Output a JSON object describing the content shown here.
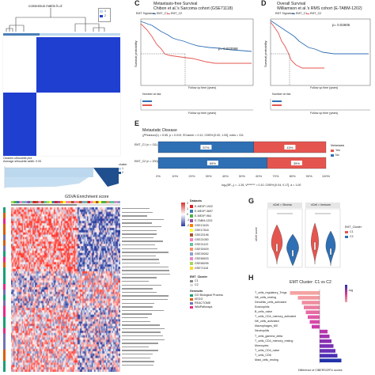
{
  "panels": {
    "C": {
      "letter": "C",
      "title_line1": "Metastasis-free Survival",
      "title_line2": "Chibon et al.'s Sarcoma cohort (GSE71118)",
      "legend_title": "EMT Signature",
      "legend_items": [
        "EMT_C1",
        "EMT_C2"
      ],
      "pvalue": "p= 0.003598",
      "ylabel": "Survival probability",
      "xlabel": "Follow up time (years)",
      "risk_title": "Number at risk",
      "risk_xlabel": "Follow up time (years)"
    },
    "D": {
      "letter": "D",
      "title_line1": "Overall Survival",
      "title_line2": "Williamson et al.'s RMS cohort (E-TABM-1202)",
      "legend_title": "EMT Signature",
      "legend_items": [
        "EMT_C1",
        "EMT_C2"
      ],
      "pvalue": "p= 0.02605",
      "ylabel": "Survival probability",
      "xlabel": "Follow up time (years)",
      "risk_title": "Number at risk",
      "risk_xlabel": "Follow up time (years)"
    },
    "E": {
      "letter": "E",
      "title": "Metastatic Disease",
      "stats": "χ²Pearson(1) = 5.55, p = 0.019, V̂Cramer = 0.12, CI95% [0.00, 1.00], nobs = 311",
      "legend_title": "Metastasis",
      "legend_items": [
        "Yes",
        "No"
      ],
      "bars": [
        {
          "label": "EMT_C1 (n = 111)",
          "pct_a": 57,
          "pct_b": 43,
          "text_a": "57%",
          "text_b": "43%"
        },
        {
          "label": "EMT_C2 (n = 200)",
          "pct_a": 65,
          "pct_b": 35,
          "text_a": "65%",
          "text_b": "35%"
        }
      ],
      "ticks": [
        "0%",
        "10%",
        "20%",
        "30%",
        "40%",
        "50%",
        "60%",
        "70%",
        "80%",
        "90%",
        "100%"
      ],
      "footer": "log₀(BF₀₁) = -1.26, Vᵖᵒˢᵗᵉʳⁱᵒʳ = 0.10, CI95% [0.04, 0.17], a = 1.00"
    },
    "B": {
      "title": "consensus matrix k=2",
      "legend_items": [
        "1",
        "2"
      ],
      "sil_title": "Clusters silhouette plot",
      "sil_subtitle": "Average silhouette width: 0.93",
      "sil_legend_title": "cluster",
      "sil_legend_items": [
        "1",
        "2"
      ]
    },
    "F": {
      "title": "GSVA Enrichment score",
      "scale_ticks": [
        "2",
        "1",
        "0",
        "-1",
        "-2"
      ],
      "datasets_title": "Datasets",
      "datasets": [
        "E-MEXP-1922",
        "E-MEXP-3697",
        "E-MEXP-964",
        "E-TABM-1202",
        "GSE13433",
        "GSE17618",
        "GSE20196",
        "GSE21050",
        "GSE21122",
        "GSE30929",
        "GSE39262",
        "GSE66533",
        "GSE68295",
        "GSE71118"
      ],
      "cluster_title": "EMT_Cluster",
      "cluster_items": [
        "C1",
        "C2"
      ],
      "genesets_title": "Genesets",
      "genesets": [
        "GO Biological Process",
        "KEGG",
        "REACTOME",
        "WikiPathways"
      ]
    },
    "G": {
      "letter": "G",
      "facet_left": "xCell = Stroma",
      "facet_right": "xCell = Immune",
      "ylabel": "xCell score",
      "legend_title": "EMT_Cluster",
      "legend_items": [
        "C1",
        "C2"
      ],
      "signif_left": "****",
      "signif_right": "***"
    },
    "H": {
      "letter": "H",
      "title": "EMT Cluster: C1 vs C2",
      "xlabel": "Difference of CIBERSORTx scores",
      "legend_title": "-log",
      "cells": [
        "T_cells_regulatory_Tregs",
        "NK_cells_resting",
        "Dendritic_cells_activated",
        "Eosinophils",
        "B_cells_naive",
        "T_cells_CD4_memory_activated",
        "NK_cells_activated",
        "Macrophages_M0",
        "Neutrophils",
        "T_cells_gamma_delta",
        "T_cells_CD4_memory_resting",
        "Monocytes",
        "T_cells_CD4_naive",
        "T_cells_CD8",
        "Mast_cells_resting"
      ]
    }
  },
  "colors": {
    "c1_blue": "#2f6fb4",
    "c2_red": "#e5554f",
    "heat_low": "#2b3d9e",
    "heat_high": "#d7312a",
    "consensus_blue": "#1f3fd0"
  }
}
